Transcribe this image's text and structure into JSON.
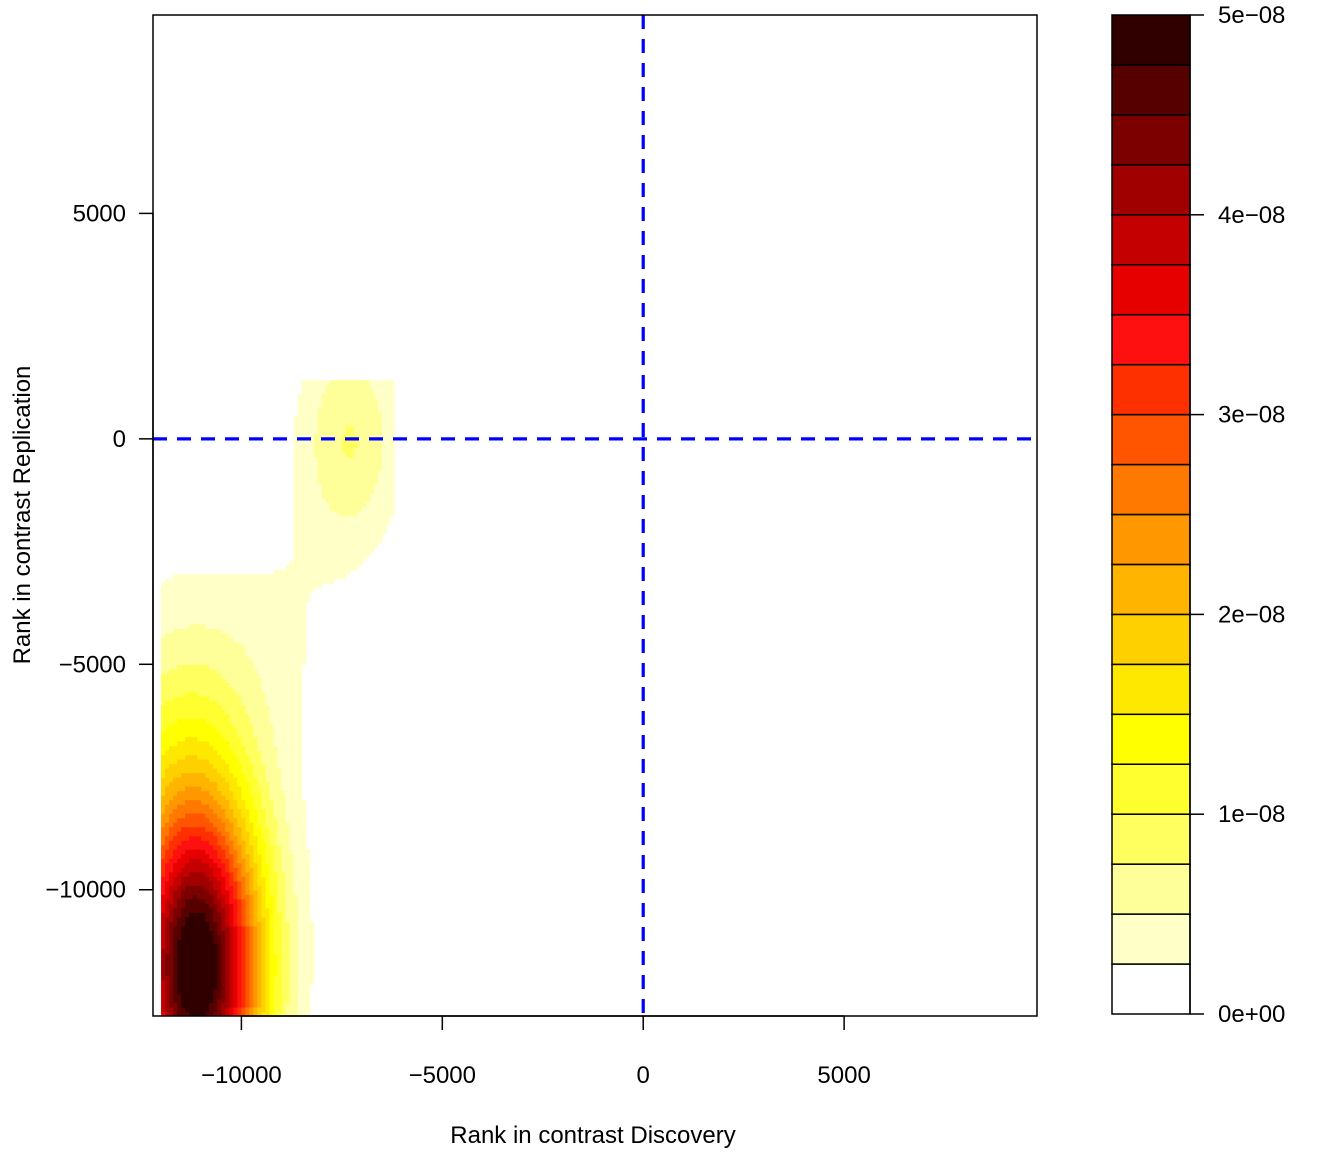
{
  "chart_data": {
    "type": "contour",
    "title": "",
    "xlabel": "Rank in contrast Discovery",
    "ylabel": "Rank in contrast Replication",
    "xlim": [
      -12200,
      9800
    ],
    "ylim": [
      -12800,
      9400
    ],
    "x_ticks": [
      -10000,
      -5000,
      0,
      5000
    ],
    "x_tick_labels": [
      "−10000",
      "−5000",
      "0",
      "5000"
    ],
    "y_ticks": [
      -10000,
      -5000,
      0,
      5000
    ],
    "y_tick_labels": [
      "−10000",
      "−5000",
      "0",
      "5000"
    ],
    "reference_lines": [
      {
        "orientation": "vertical",
        "value": 0,
        "color": "#0000ff",
        "style": "dashed"
      },
      {
        "orientation": "horizontal",
        "value": 0,
        "color": "#0000ff",
        "style": "dashed"
      }
    ],
    "density_components": [
      {
        "cx": -11100,
        "cy": -11900,
        "sx": 1150,
        "sy": 2600,
        "peak": 5e-08
      },
      {
        "cx": -11500,
        "cy": -7500,
        "sx": 1500,
        "sy": 2600,
        "peak": 9e-09
      },
      {
        "cx": -7300,
        "cy": 0,
        "sx": 900,
        "sy": 1700,
        "peak": 7.5e-09
      },
      {
        "cx": -9000,
        "cy": -4000,
        "sx": 1400,
        "sy": 2000,
        "peak": 2e-09
      }
    ],
    "density_regions": [
      {
        "x_min": -12000,
        "x_max": -6200,
        "y_min": -12800,
        "y_max": -3000
      },
      {
        "x_min": -9200,
        "x_max": -6200,
        "y_min": -3000,
        "y_max": 1300
      }
    ],
    "colorbar": {
      "range": [
        0,
        5e-08
      ],
      "ticks": [
        0,
        1e-08,
        2e-08,
        3e-08,
        4e-08,
        5e-08
      ],
      "tick_labels": [
        "0e+00",
        "1e−08",
        "2e−08",
        "3e−08",
        "4e−08",
        "5e−08"
      ],
      "levels": [
        0,
        2.5e-09,
        5e-09,
        7.5e-09,
        1e-08,
        1.25e-08,
        1.5e-08,
        1.75e-08,
        2e-08,
        2.25e-08,
        2.5e-08,
        2.75e-08,
        3e-08,
        3.25e-08,
        3.5e-08,
        3.75e-08,
        4e-08,
        4.25e-08,
        4.5e-08,
        4.75e-08,
        5e-08
      ],
      "colors": [
        "#ffffff",
        "#ffffc8",
        "#ffff9a",
        "#ffff60",
        "#ffff30",
        "#ffff00",
        "#ffe800",
        "#ffd000",
        "#ffb400",
        "#ff9800",
        "#ff7800",
        "#ff5400",
        "#ff3000",
        "#ff1010",
        "#e60000",
        "#c40000",
        "#a00000",
        "#7c0000",
        "#560000",
        "#300000",
        "#000000"
      ]
    }
  }
}
